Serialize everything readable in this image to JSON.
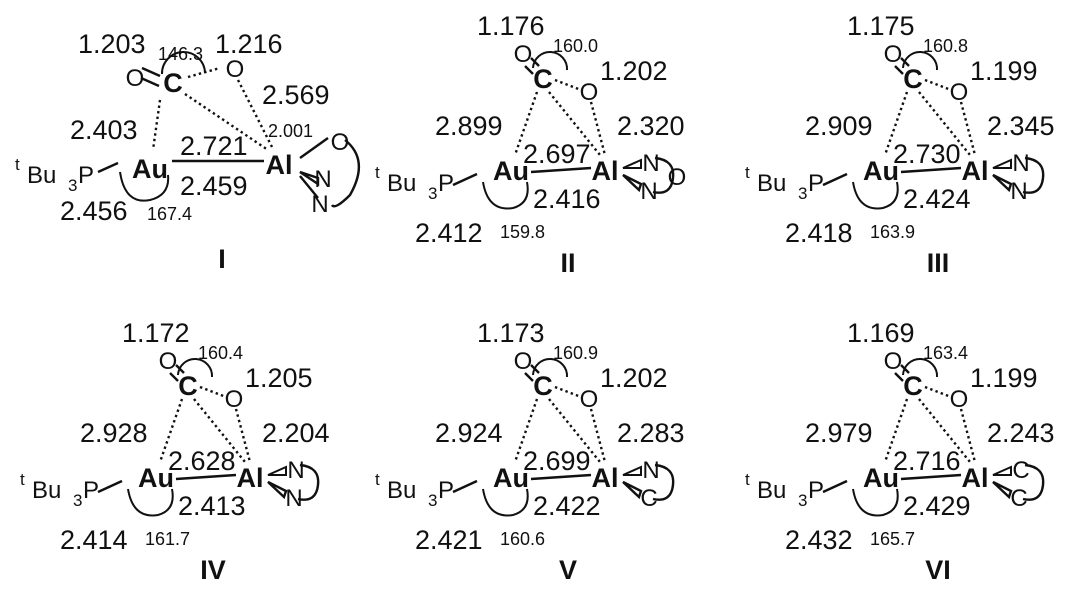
{
  "colors": {
    "au": "#1f4e9c",
    "al": "#e8312a",
    "c": "#1e8a3c",
    "text": "#111111"
  },
  "structures": [
    {
      "label": "I",
      "co_a": "1.203",
      "co_b": "1.216",
      "oco": "146.3",
      "c_al": "2.569",
      "o_al": "2.001",
      "au_c": "2.403",
      "au_al": "2.721",
      "au_al_2": "2.459",
      "p_au": "2.456",
      "p_au_al": "167.4",
      "ring": "N-N-O"
    },
    {
      "label": "II",
      "co_a": "1.176",
      "co_b": "1.202",
      "oco": "160.0",
      "o_al": "2.320",
      "au_c": "2.899",
      "au_al": "2.697",
      "au_al_2": "2.416",
      "p_au": "2.412",
      "p_au_al": "159.8",
      "ring": "N-N-O"
    },
    {
      "label": "III",
      "co_a": "1.175",
      "co_b": "1.199",
      "oco": "160.8",
      "o_al": "2.345",
      "au_c": "2.909",
      "au_al": "2.730",
      "au_al_2": "2.424",
      "p_au": "2.418",
      "p_au_al": "163.9",
      "ring": "N-N"
    },
    {
      "label": "IV",
      "co_a": "1.172",
      "co_b": "1.205",
      "oco": "160.4",
      "o_al": "2.204",
      "au_c": "2.928",
      "au_al": "2.628",
      "au_al_2": "2.413",
      "p_au": "2.414",
      "p_au_al": "161.7",
      "ring": "N-N chain"
    },
    {
      "label": "V",
      "co_a": "1.173",
      "co_b": "1.202",
      "oco": "160.9",
      "o_al": "2.283",
      "au_c": "2.924",
      "au_al": "2.699",
      "au_al_2": "2.422",
      "p_au": "2.421",
      "p_au_al": "160.6",
      "ring": "N-C"
    },
    {
      "label": "VI",
      "co_a": "1.169",
      "co_b": "1.199",
      "oco": "163.4",
      "o_al": "2.243",
      "au_c": "2.979",
      "au_al": "2.716",
      "au_al_2": "2.429",
      "p_au": "2.432",
      "p_au_al": "165.7",
      "ring": "C-C"
    }
  ],
  "atoms": {
    "au": "Au",
    "al": "Al",
    "c": "C",
    "o": "O",
    "n": "N",
    "p": "P",
    "bu": "Bu",
    "sub3": "3",
    "t": "t"
  }
}
